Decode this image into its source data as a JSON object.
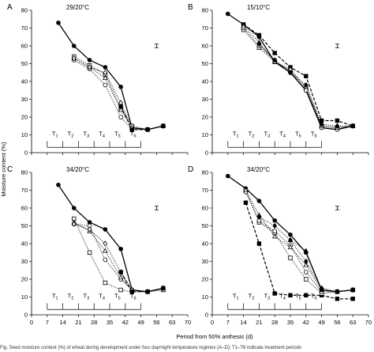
{
  "figure": {
    "ylabel": "Moisture content (%)",
    "xlabel": "Period from 50% anthesis (d)",
    "caption": "Fig. Seed moisture content (%) of wheat during development under four day/night temperature regimes (A–D); T1–T6 indicate treatment periods"
  },
  "chart_data": [
    {
      "panel": "A",
      "title": "29/20°C",
      "type": "line",
      "xlim": [
        0,
        70
      ],
      "ylim": [
        0,
        80
      ],
      "xticks": [
        0,
        7,
        14,
        21,
        28,
        35,
        42,
        49,
        56,
        63,
        70
      ],
      "yticks": [
        0,
        10,
        20,
        30,
        40,
        50,
        60,
        70,
        80
      ],
      "show_x_tick_labels": false,
      "error_bar": {
        "x": 56,
        "y": 60,
        "half": 1
      },
      "periods": [
        "T1",
        "T2",
        "T3",
        "T4",
        "T5",
        "T6"
      ],
      "series": [
        {
          "style": "solid",
          "marker": "circle-filled",
          "x": [
            12,
            19,
            26,
            33,
            40,
            45,
            52,
            59
          ],
          "y": [
            73,
            60,
            52,
            48,
            37,
            14,
            13,
            15
          ]
        },
        {
          "style": "dotted",
          "marker": "square-open",
          "x": [
            19,
            26,
            33,
            40,
            45,
            52,
            59
          ],
          "y": [
            54,
            49,
            44,
            25,
            15,
            13,
            15
          ]
        },
        {
          "style": "dotted",
          "marker": "circle-open",
          "x": [
            19,
            26,
            33,
            40,
            45,
            52,
            59
          ],
          "y": [
            52,
            47,
            38,
            20,
            13,
            13,
            15
          ]
        },
        {
          "style": "dotted",
          "marker": "triangle-open",
          "x": [
            19,
            26,
            33,
            40,
            45,
            52,
            59
          ],
          "y": [
            53,
            48,
            42,
            24,
            14,
            13,
            15
          ]
        },
        {
          "style": "dotted",
          "marker": "diamond-open",
          "x": [
            19,
            26,
            33,
            40,
            45,
            52,
            59
          ],
          "y": [
            53,
            48,
            45,
            28,
            14,
            13,
            15
          ]
        },
        {
          "style": "dashed",
          "marker": "square-filled",
          "x": [
            40,
            45,
            52,
            59
          ],
          "y": [
            26,
            13,
            13,
            15
          ]
        }
      ]
    },
    {
      "panel": "B",
      "title": "15/10°C",
      "type": "line",
      "xlim": [
        0,
        70
      ],
      "ylim": [
        0,
        80
      ],
      "xticks": [
        0,
        7,
        14,
        21,
        28,
        35,
        42,
        49,
        56,
        63,
        70
      ],
      "yticks": [
        0,
        10,
        20,
        30,
        40,
        50,
        60,
        70,
        80
      ],
      "show_x_tick_labels": false,
      "error_bar": {
        "x": 56,
        "y": 60,
        "half": 1
      },
      "periods": [
        "T1",
        "T2",
        "T3",
        "T4",
        "T5",
        "T6"
      ],
      "series": [
        {
          "style": "solid",
          "marker": "circle-filled",
          "x": [
            7,
            14,
            21,
            28,
            35,
            42,
            49,
            56,
            63
          ],
          "y": [
            78,
            72,
            65,
            51,
            45,
            35,
            14,
            13,
            15
          ]
        },
        {
          "style": "dashed",
          "marker": "square-filled",
          "x": [
            14,
            21,
            28,
            35,
            42,
            49,
            56,
            63
          ],
          "y": [
            72,
            66,
            56,
            48,
            43,
            18,
            18,
            15
          ]
        },
        {
          "style": "dotted",
          "marker": "square-open",
          "x": [
            14,
            21,
            28,
            35,
            42,
            49,
            56,
            63
          ],
          "y": [
            69,
            59,
            51,
            46,
            36,
            15,
            14,
            15
          ]
        },
        {
          "style": "dotted",
          "marker": "circle-open",
          "x": [
            14,
            21,
            28,
            35,
            42,
            49,
            56,
            63
          ],
          "y": [
            70,
            60,
            52,
            45,
            35,
            14,
            13,
            15
          ]
        },
        {
          "style": "dotted",
          "marker": "triangle-open",
          "x": [
            14,
            21,
            28,
            35,
            42,
            49,
            56,
            63
          ],
          "y": [
            71,
            62,
            51,
            47,
            37,
            15,
            14,
            15
          ]
        },
        {
          "style": "dotted",
          "marker": "diamond-filled",
          "x": [
            21,
            28,
            35,
            42,
            49,
            56,
            63
          ],
          "y": [
            61,
            52,
            45,
            38,
            16,
            15,
            15
          ]
        }
      ]
    },
    {
      "panel": "C",
      "title": "34/20°C",
      "type": "line",
      "xlim": [
        0,
        70
      ],
      "ylim": [
        0,
        80
      ],
      "xticks": [
        0,
        7,
        14,
        21,
        28,
        35,
        42,
        49,
        56,
        63,
        70
      ],
      "yticks": [
        0,
        10,
        20,
        30,
        40,
        50,
        60,
        70,
        80
      ],
      "show_x_tick_labels": true,
      "error_bar": {
        "x": 56,
        "y": 60,
        "half": 1
      },
      "periods": [
        "T1",
        "T2",
        "T3",
        "T4",
        "T5",
        "T6"
      ],
      "series": [
        {
          "style": "solid",
          "marker": "circle-filled",
          "x": [
            12,
            19,
            26,
            33,
            40,
            45,
            52,
            59
          ],
          "y": [
            73,
            60,
            52,
            48,
            37,
            14,
            13,
            15
          ]
        },
        {
          "style": "dotted",
          "marker": "square-open",
          "x": [
            19,
            26,
            33,
            40,
            45,
            52,
            59
          ],
          "y": [
            54,
            35,
            18,
            14,
            13,
            13,
            14
          ]
        },
        {
          "style": "dotted",
          "marker": "circle-open",
          "x": [
            19,
            26,
            33,
            40,
            45,
            52,
            59
          ],
          "y": [
            51,
            50,
            31,
            20,
            14,
            13,
            14
          ]
        },
        {
          "style": "dotted",
          "marker": "triangle-open",
          "x": [
            19,
            26,
            33,
            40,
            45,
            52,
            59
          ],
          "y": [
            52,
            47,
            36,
            21,
            14,
            13,
            15
          ]
        },
        {
          "style": "dotted",
          "marker": "diamond-open",
          "x": [
            19,
            26,
            33,
            40,
            45,
            52,
            59
          ],
          "y": [
            51,
            48,
            40,
            24,
            14,
            13,
            15
          ]
        },
        {
          "style": "dashed",
          "marker": "square-filled",
          "x": [
            40,
            45,
            52,
            59
          ],
          "y": [
            24,
            13,
            13,
            15
          ]
        }
      ]
    },
    {
      "panel": "D",
      "title": "34/20°C",
      "type": "line",
      "xlim": [
        0,
        70
      ],
      "ylim": [
        0,
        80
      ],
      "xticks": [
        0,
        7,
        14,
        21,
        28,
        35,
        42,
        49,
        56,
        63,
        70
      ],
      "yticks": [
        0,
        10,
        20,
        30,
        40,
        50,
        60,
        70,
        80
      ],
      "show_x_tick_labels": true,
      "error_bar": {
        "x": 56,
        "y": 60,
        "half": 1
      },
      "periods": [
        "T1",
        "T2",
        "T3",
        "T4",
        "T5",
        "T6"
      ],
      "series": [
        {
          "style": "solid",
          "marker": "circle-filled",
          "x": [
            7,
            15,
            21,
            28,
            35,
            42,
            49,
            56,
            63
          ],
          "y": [
            78,
            71,
            64,
            53,
            45,
            35,
            14,
            13,
            14
          ]
        },
        {
          "style": "dashed",
          "marker": "square-filled",
          "x": [
            15,
            21,
            28,
            35,
            42,
            49,
            56,
            63
          ],
          "y": [
            63,
            40,
            12,
            11,
            11,
            11,
            9,
            9
          ]
        },
        {
          "style": "dotted",
          "marker": "square-open",
          "x": [
            15,
            21,
            28,
            35,
            42,
            49,
            56,
            63
          ],
          "y": [
            70,
            52,
            46,
            32,
            20,
            12,
            13,
            14
          ]
        },
        {
          "style": "dotted",
          "marker": "circle-open",
          "x": [
            15,
            21,
            28,
            35,
            42,
            49,
            56,
            63
          ],
          "y": [
            69,
            53,
            47,
            39,
            24,
            13,
            13,
            14
          ]
        },
        {
          "style": "dotted",
          "marker": "triangle-open",
          "x": [
            15,
            21,
            28,
            35,
            42,
            49,
            56,
            63
          ],
          "y": [
            70,
            56,
            44,
            38,
            28,
            14,
            13,
            14
          ]
        },
        {
          "style": "dotted",
          "marker": "diamond-filled",
          "x": [
            21,
            28,
            35,
            42,
            49,
            56,
            63
          ],
          "y": [
            55,
            50,
            42,
            30,
            15,
            13,
            14
          ]
        },
        {
          "style": "dotted",
          "marker": "triangle-filled",
          "x": [
            35,
            42,
            49,
            56,
            63
          ],
          "y": [
            42,
            36,
            14,
            13,
            14
          ]
        }
      ]
    }
  ]
}
